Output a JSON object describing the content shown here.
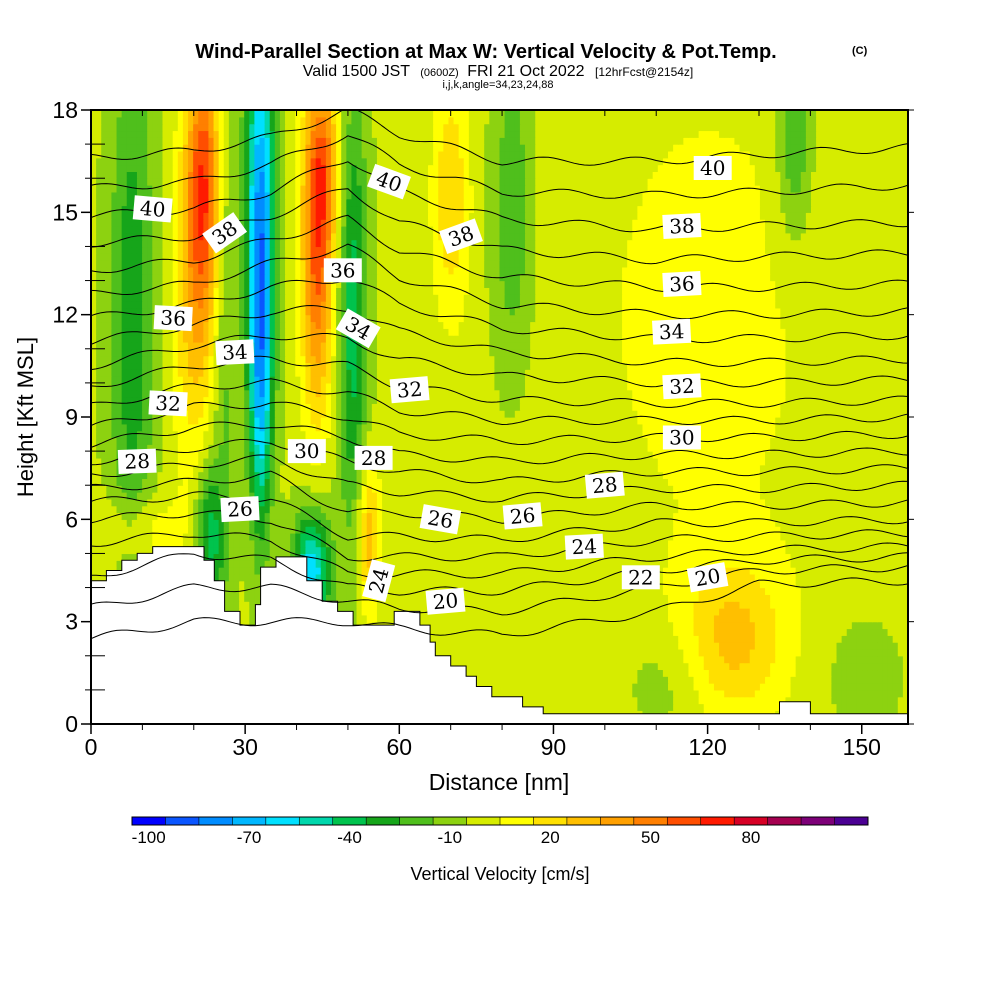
{
  "chart_data": {
    "type": "heatmap",
    "title": "Wind-Parallel Section at Max W: Vertical Velocity & Pot.Temp.",
    "title_mark": "(C)",
    "subtitle": {
      "valid": "Valid 1500 JST",
      "utc": "(0600Z)",
      "date": "FRI 21 Oct 2022",
      "fcst": "[12hrFcst@2154z]"
    },
    "indices": "i,j,k,angle=34,23,24,88",
    "xlabel": "Distance [nm]",
    "ylabel": "Height [Kft MSL]",
    "xlim": [
      0,
      159
    ],
    "ylim": [
      0,
      18
    ],
    "x_ticks": [
      "0",
      "30",
      "60",
      "90",
      "120",
      "150"
    ],
    "y_ticks": [
      "0",
      "3",
      "6",
      "9",
      "12",
      "15",
      "18"
    ],
    "colorbar": {
      "label": "Vertical Velocity [cm/s]",
      "tick_labels": [
        "-100",
        "-70",
        "-40",
        "-10",
        "20",
        "50",
        "80"
      ],
      "colors": [
        "#0000ff",
        "#0a55ff",
        "#008cff",
        "#00b7ff",
        "#00e0ff",
        "#00d7ac",
        "#00c34d",
        "#16a51a",
        "#4fbf1c",
        "#8dd210",
        "#d6ec00",
        "#ffff00",
        "#ffe000",
        "#ffbf00",
        "#ffa000",
        "#ff7f00",
        "#ff4e00",
        "#ff1a00",
        "#d70025",
        "#a50050",
        "#7d0078",
        "#4b0093"
      ]
    },
    "terrain": [
      [
        0,
        4.2
      ],
      [
        3,
        4.2
      ],
      [
        3,
        4.5
      ],
      [
        6,
        4.5
      ],
      [
        6,
        4.8
      ],
      [
        9,
        4.8
      ],
      [
        9,
        5.0
      ],
      [
        12,
        5.0
      ],
      [
        12,
        5.2
      ],
      [
        22,
        5.2
      ],
      [
        22,
        4.8
      ],
      [
        24,
        4.8
      ],
      [
        24,
        4.2
      ],
      [
        26,
        4.2
      ],
      [
        26,
        3.3
      ],
      [
        29,
        3.3
      ],
      [
        29,
        2.9
      ],
      [
        32,
        2.9
      ],
      [
        32,
        3.5
      ],
      [
        33,
        3.5
      ],
      [
        33,
        4.6
      ],
      [
        36,
        4.6
      ],
      [
        36,
        4.9
      ],
      [
        42,
        4.9
      ],
      [
        42,
        4.2
      ],
      [
        45,
        4.2
      ],
      [
        45,
        3.6
      ],
      [
        48,
        3.6
      ],
      [
        48,
        3.3
      ],
      [
        51,
        3.3
      ],
      [
        51,
        2.9
      ],
      [
        59,
        2.9
      ],
      [
        59,
        3.3
      ],
      [
        64,
        3.3
      ],
      [
        64,
        2.9
      ],
      [
        66,
        2.9
      ],
      [
        66,
        2.4
      ],
      [
        67,
        2.4
      ],
      [
        67,
        2.0
      ],
      [
        70,
        2.0
      ],
      [
        70,
        1.7
      ],
      [
        73,
        1.7
      ],
      [
        73,
        1.4
      ],
      [
        75,
        1.4
      ],
      [
        75,
        1.1
      ],
      [
        78,
        1.1
      ],
      [
        78,
        0.8
      ],
      [
        84,
        0.8
      ],
      [
        84,
        0.5
      ],
      [
        88,
        0.5
      ],
      [
        88,
        0.3
      ],
      [
        134,
        0.3
      ],
      [
        134,
        0.65
      ],
      [
        140,
        0.65
      ],
      [
        140,
        0.3
      ],
      [
        150,
        0.3
      ],
      [
        159,
        0.3
      ]
    ],
    "velocity_features": [
      {
        "x": 22,
        "y": 16.0,
        "sx": 2.5,
        "sy": 2.8,
        "value": 60
      },
      {
        "x": 20,
        "y": 12.0,
        "sx": 3.0,
        "sy": 3.5,
        "value": 28
      },
      {
        "x": 44,
        "y": 13.0,
        "sx": 2.2,
        "sy": 3.0,
        "value": 52
      },
      {
        "x": 45,
        "y": 16.5,
        "sx": 2.4,
        "sy": 2.0,
        "value": 45
      },
      {
        "x": 54,
        "y": 5.5,
        "sx": 1.6,
        "sy": 1.6,
        "value": 35
      },
      {
        "x": 70,
        "y": 15.5,
        "sx": 2.5,
        "sy": 2.5,
        "value": 26
      },
      {
        "x": 125,
        "y": 2.5,
        "sx": 7.0,
        "sy": 1.6,
        "value": 28
      },
      {
        "x": 33,
        "y": 15.0,
        "sx": 2.0,
        "sy": 4.0,
        "value": -72
      },
      {
        "x": 33,
        "y": 9.5,
        "sx": 1.5,
        "sy": 3.0,
        "value": -45
      },
      {
        "x": 8,
        "y": 12.0,
        "sx": 3.0,
        "sy": 5.5,
        "value": -30
      },
      {
        "x": 26,
        "y": 13.0,
        "sx": 1.8,
        "sy": 6.0,
        "value": -18
      },
      {
        "x": 51,
        "y": 12.0,
        "sx": 2.0,
        "sy": 4.5,
        "value": -38
      },
      {
        "x": 43,
        "y": 4.5,
        "sx": 2.5,
        "sy": 1.2,
        "value": -60
      },
      {
        "x": 23,
        "y": 5.5,
        "sx": 2.0,
        "sy": 1.5,
        "value": -38
      },
      {
        "x": 82,
        "y": 15.0,
        "sx": 3.0,
        "sy": 3.5,
        "value": -22
      },
      {
        "x": 137,
        "y": 17.0,
        "sx": 2.5,
        "sy": 2.0,
        "value": -25
      },
      {
        "x": 10,
        "y": 5.6,
        "sx": 6.0,
        "sy": 0.8,
        "value": 16
      },
      {
        "x": 120,
        "y": 12.0,
        "sx": 25.0,
        "sy": 8.0,
        "value": 10
      },
      {
        "x": 112,
        "y": 1.2,
        "sx": 6.0,
        "sy": 1.2,
        "value": -10
      },
      {
        "x": 150,
        "y": 1.5,
        "sx": 6.0,
        "sy": 1.5,
        "value": -8
      }
    ],
    "theta_levels": [
      20,
      21,
      22,
      23,
      24,
      25,
      26,
      27,
      28,
      29,
      30,
      31,
      32,
      33,
      34,
      35,
      36,
      37,
      38,
      39,
      40,
      41
    ],
    "theta_profiles": [
      {
        "x": 0,
        "heights": [
          2.5,
          3.4,
          4.3,
          5.3,
          6.0,
          6.5,
          6.9,
          7.3,
          7.7,
          8.2,
          8.7,
          9.3,
          9.9,
          10.5,
          11.2,
          11.9,
          12.6,
          13.3,
          14.1,
          14.9,
          15.7,
          16.6
        ]
      },
      {
        "x": 20,
        "heights": [
          3.0,
          4.0,
          5.0,
          5.6,
          6.2,
          6.7,
          7.1,
          7.6,
          8.1,
          8.7,
          9.3,
          9.9,
          10.5,
          11.1,
          11.7,
          12.3,
          12.9,
          13.6,
          14.3,
          15.1,
          15.9,
          16.8
        ]
      },
      {
        "x": 35,
        "heights": [
          3.0,
          4.0,
          4.8,
          5.4,
          6.0,
          6.6,
          7.3,
          7.8,
          8.3,
          8.8,
          9.4,
          10.0,
          10.7,
          11.4,
          12.1,
          12.8,
          13.5,
          14.2,
          14.9,
          15.6,
          16.4,
          17.2
        ]
      },
      {
        "x": 50,
        "heights": [
          3.0,
          3.6,
          4.0,
          4.4,
          4.9,
          5.5,
          6.2,
          7.0,
          7.7,
          8.4,
          9.0,
          9.7,
          10.5,
          11.3,
          12.2,
          13.1,
          14.0,
          14.8,
          15.7,
          16.6,
          17.3,
          18.0
        ]
      },
      {
        "x": 60,
        "heights": [
          2.8,
          3.4,
          3.9,
          4.4,
          4.9,
          5.5,
          6.2,
          6.8,
          7.4,
          7.9,
          8.5,
          9.2,
          9.9,
          10.7,
          11.5,
          12.3,
          13.1,
          13.9,
          14.7,
          15.6,
          16.4,
          17.3
        ]
      },
      {
        "x": 80,
        "heights": [
          2.6,
          3.3,
          3.9,
          4.4,
          4.9,
          5.4,
          6.0,
          6.6,
          7.1,
          7.7,
          8.3,
          8.9,
          9.5,
          10.2,
          10.9,
          11.6,
          12.3,
          13.1,
          13.9,
          14.8,
          15.6,
          16.5
        ]
      },
      {
        "x": 110,
        "heights": [
          3.3,
          4.0,
          4.5,
          4.9,
          5.4,
          5.9,
          6.4,
          6.9,
          7.4,
          7.9,
          8.4,
          8.9,
          9.4,
          10.0,
          10.6,
          11.3,
          12.0,
          12.8,
          13.6,
          14.5,
          15.5,
          16.5
        ]
      },
      {
        "x": 130,
        "heights": [
          4.1,
          4.5,
          4.8,
          5.1,
          5.5,
          5.9,
          6.4,
          6.9,
          7.4,
          7.9,
          8.4,
          8.9,
          9.4,
          10.0,
          10.6,
          11.3,
          12.0,
          12.8,
          13.7,
          14.6,
          15.6,
          16.7
        ]
      },
      {
        "x": 159,
        "heights": [
          4.2,
          4.6,
          4.9,
          5.2,
          5.6,
          6.0,
          6.5,
          7.0,
          7.5,
          8.0,
          8.5,
          9.0,
          9.5,
          10.1,
          10.7,
          11.4,
          12.1,
          12.9,
          13.8,
          14.7,
          15.8,
          16.9
        ]
      }
    ],
    "contour_labels": [
      {
        "text": "40",
        "x": 12,
        "y": 15.1,
        "angle": 5
      },
      {
        "text": "38",
        "x": 26,
        "y": 14.4,
        "angle": -35
      },
      {
        "text": "36",
        "x": 16,
        "y": 11.9,
        "angle": 3
      },
      {
        "text": "34",
        "x": 28,
        "y": 10.9,
        "angle": -3
      },
      {
        "text": "32",
        "x": 15,
        "y": 9.4,
        "angle": 3
      },
      {
        "text": "28",
        "x": 9,
        "y": 7.7,
        "angle": -2
      },
      {
        "text": "26",
        "x": 29,
        "y": 6.3,
        "angle": -3
      },
      {
        "text": "30",
        "x": 42,
        "y": 8.0,
        "angle": 0
      },
      {
        "text": "28",
        "x": 55,
        "y": 7.8,
        "angle": 0
      },
      {
        "text": "36",
        "x": 49,
        "y": 13.3,
        "angle": 0
      },
      {
        "text": "34",
        "x": 52,
        "y": 11.6,
        "angle": 30
      },
      {
        "text": "40",
        "x": 58,
        "y": 15.9,
        "angle": 20
      },
      {
        "text": "38",
        "x": 72,
        "y": 14.3,
        "angle": -20
      },
      {
        "text": "32",
        "x": 62,
        "y": 9.8,
        "angle": -5
      },
      {
        "text": "26",
        "x": 68,
        "y": 6.0,
        "angle": 10
      },
      {
        "text": "26",
        "x": 84,
        "y": 6.1,
        "angle": -5
      },
      {
        "text": "24",
        "x": 56,
        "y": 4.2,
        "angle": -75
      },
      {
        "text": "20",
        "x": 69,
        "y": 3.6,
        "angle": -5
      },
      {
        "text": "24",
        "x": 96,
        "y": 5.2,
        "angle": -3
      },
      {
        "text": "28",
        "x": 100,
        "y": 7.0,
        "angle": -5
      },
      {
        "text": "30",
        "x": 115,
        "y": 8.4,
        "angle": 0
      },
      {
        "text": "32",
        "x": 115,
        "y": 9.9,
        "angle": -3
      },
      {
        "text": "34",
        "x": 113,
        "y": 11.5,
        "angle": -3
      },
      {
        "text": "36",
        "x": 115,
        "y": 12.9,
        "angle": -3
      },
      {
        "text": "38",
        "x": 115,
        "y": 14.6,
        "angle": -3
      },
      {
        "text": "40",
        "x": 121,
        "y": 16.3,
        "angle": 0
      },
      {
        "text": "22",
        "x": 107,
        "y": 4.3,
        "angle": 0
      },
      {
        "text": "20",
        "x": 120,
        "y": 4.3,
        "angle": -10
      }
    ]
  }
}
